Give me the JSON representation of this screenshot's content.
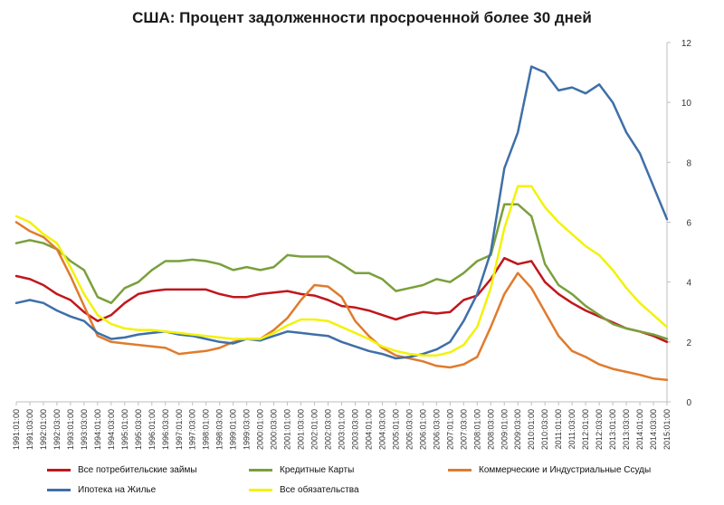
{
  "chart_data": {
    "type": "line",
    "title": "США: Процент задолженности просроченной более 30 дней",
    "xlabel": "",
    "ylabel": "",
    "ylim": [
      0,
      12
    ],
    "yticks": [
      0,
      2,
      4,
      6,
      8,
      10,
      12
    ],
    "y_axis_side": "right",
    "grid": false,
    "legend_position": "bottom",
    "x": [
      "1991:01:00",
      "1991:03:00",
      "1992:01:00",
      "1992:03:00",
      "1993:01:00",
      "1993:03:00",
      "1994:01:00",
      "1994:03:00",
      "1995:01:00",
      "1995:03:00",
      "1996:01:00",
      "1996:03:00",
      "1997:01:00",
      "1997:03:00",
      "1998:01:00",
      "1998:03:00",
      "1999:01:00",
      "1999:03:00",
      "2000:01:00",
      "2000:03:00",
      "2001:01:00",
      "2001:03:00",
      "2002:01:00",
      "2002:03:00",
      "2003:01:00",
      "2003:03:00",
      "2004:01:00",
      "2004:03:00",
      "2005:01:00",
      "2005:03:00",
      "2006:01:00",
      "2006:03:00",
      "2007:01:00",
      "2007:03:00",
      "2008:01:00",
      "2008:03:00",
      "2009:01:00",
      "2009:03:00",
      "2010:01:00",
      "2010:03:00",
      "2011:01:00",
      "2011:03:00",
      "2012:01:00",
      "2012:03:00",
      "2013:01:00",
      "2013:03:00",
      "2014:01:00",
      "2014:03:00",
      "2015:01:00"
    ],
    "series": [
      {
        "name": "Все потребительские займы",
        "color": "#c0171c",
        "values": [
          4.2,
          4.1,
          3.9,
          3.6,
          3.4,
          3.0,
          2.7,
          2.9,
          3.3,
          3.6,
          3.7,
          3.75,
          3.75,
          3.75,
          3.75,
          3.6,
          3.5,
          3.5,
          3.6,
          3.65,
          3.7,
          3.6,
          3.55,
          3.4,
          3.2,
          3.15,
          3.05,
          2.9,
          2.75,
          2.9,
          3.0,
          2.95,
          3.0,
          3.4,
          3.55,
          4.1,
          4.8,
          4.6,
          4.7,
          4.0,
          3.6,
          3.3,
          3.05,
          2.85,
          2.65,
          2.45,
          2.35,
          2.2,
          2.0
        ]
      },
      {
        "name": "Кредитные Карты",
        "color": "#7aa03c",
        "values": [
          5.3,
          5.4,
          5.3,
          5.1,
          4.7,
          4.4,
          3.5,
          3.3,
          3.8,
          4.0,
          4.4,
          4.7,
          4.7,
          4.75,
          4.7,
          4.6,
          4.4,
          4.5,
          4.4,
          4.5,
          4.9,
          4.85,
          4.85,
          4.85,
          4.6,
          4.3,
          4.3,
          4.1,
          3.7,
          3.8,
          3.9,
          4.1,
          4.0,
          4.3,
          4.7,
          4.9,
          6.6,
          6.6,
          6.2,
          4.6,
          3.9,
          3.6,
          3.2,
          2.9,
          2.6,
          2.45,
          2.35,
          2.25,
          2.1
        ]
      },
      {
        "name": "Коммерческие и Индустриальные Ссуды",
        "color": "#e07b2d",
        "values": [
          6.0,
          5.7,
          5.5,
          5.1,
          4.2,
          3.2,
          2.2,
          2.0,
          1.95,
          1.9,
          1.85,
          1.8,
          1.6,
          1.65,
          1.7,
          1.8,
          2.0,
          2.1,
          2.1,
          2.4,
          2.8,
          3.4,
          3.9,
          3.85,
          3.5,
          2.7,
          2.2,
          1.8,
          1.55,
          1.45,
          1.35,
          1.2,
          1.15,
          1.25,
          1.5,
          2.5,
          3.6,
          4.3,
          3.8,
          3.0,
          2.2,
          1.7,
          1.5,
          1.25,
          1.1,
          1.0,
          0.9,
          0.78,
          0.73
        ]
      },
      {
        "name": "Ипотека на Жилье",
        "color": "#3f6fa8",
        "values": [
          3.3,
          3.4,
          3.3,
          3.05,
          2.85,
          2.7,
          2.3,
          2.1,
          2.15,
          2.25,
          2.3,
          2.35,
          2.25,
          2.2,
          2.1,
          2.0,
          1.95,
          2.1,
          2.05,
          2.2,
          2.35,
          2.3,
          2.25,
          2.2,
          2.0,
          1.85,
          1.7,
          1.6,
          1.45,
          1.5,
          1.6,
          1.75,
          2.0,
          2.7,
          3.6,
          5.0,
          7.8,
          9.0,
          11.2,
          11.0,
          10.4,
          10.5,
          10.3,
          10.6,
          10.0,
          9.0,
          8.3,
          7.2,
          6.1
        ]
      },
      {
        "name": "Все обязательства",
        "color": "#f2f20a",
        "values": [
          6.2,
          6.0,
          5.6,
          5.3,
          4.5,
          3.6,
          2.9,
          2.6,
          2.45,
          2.4,
          2.4,
          2.35,
          2.3,
          2.25,
          2.2,
          2.15,
          2.1,
          2.1,
          2.1,
          2.3,
          2.55,
          2.75,
          2.75,
          2.7,
          2.5,
          2.3,
          2.1,
          1.85,
          1.7,
          1.6,
          1.55,
          1.55,
          1.65,
          1.9,
          2.5,
          3.8,
          5.8,
          7.2,
          7.2,
          6.5,
          6.0,
          5.6,
          5.2,
          4.9,
          4.4,
          3.8,
          3.3,
          2.9,
          2.5
        ]
      }
    ]
  },
  "legend_items": [
    {
      "label": "Все потребительские займы",
      "color": "#c0171c"
    },
    {
      "label": "Кредитные Карты",
      "color": "#7aa03c"
    },
    {
      "label": "Коммерческие и Индустриальные Ссуды",
      "color": "#e07b2d"
    },
    {
      "label": "Ипотека на Жилье",
      "color": "#3f6fa8"
    },
    {
      "label": "Все обязательства",
      "color": "#f2f20a"
    }
  ]
}
